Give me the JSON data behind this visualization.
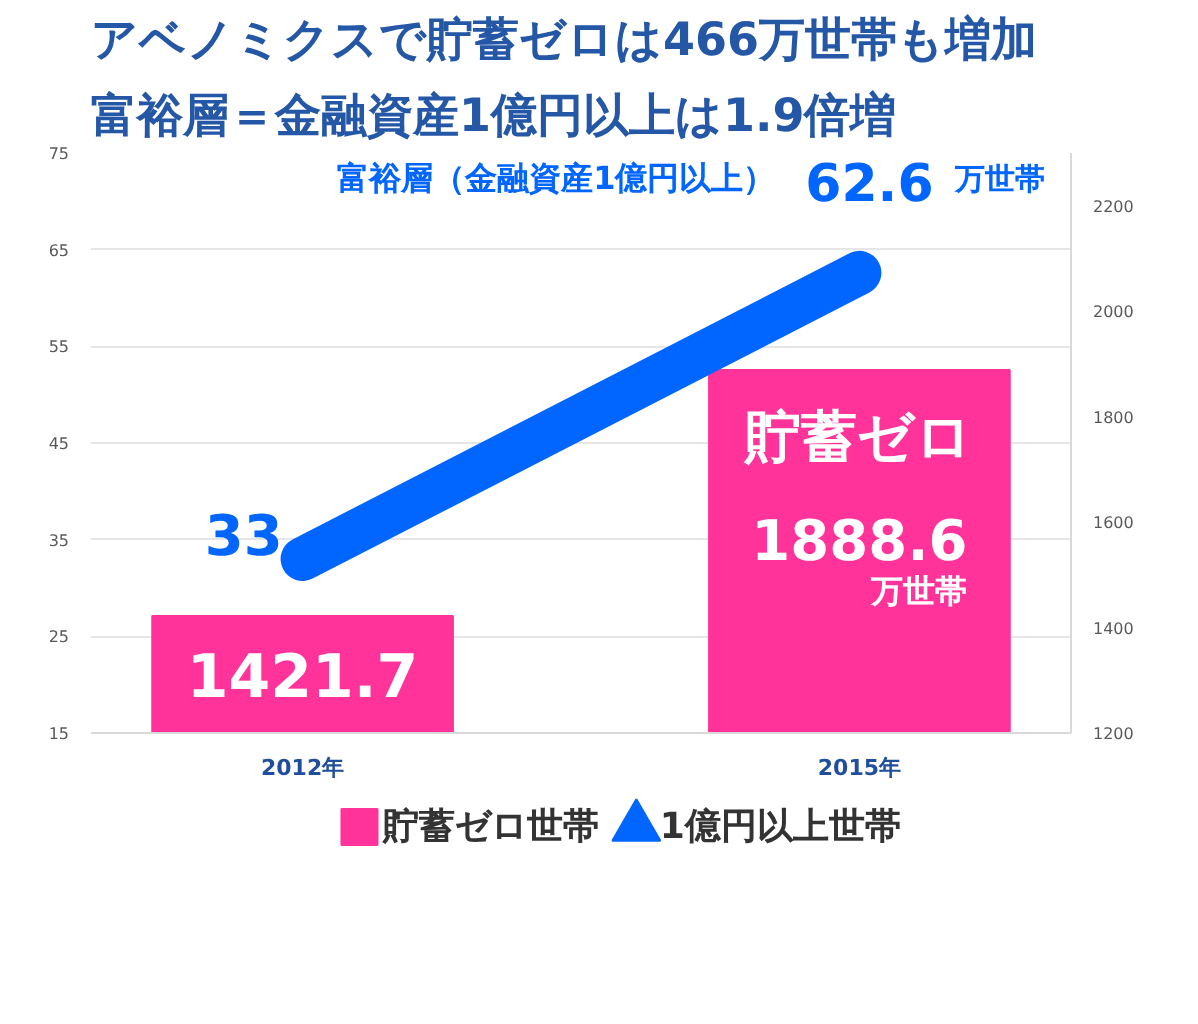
{
  "chart_data": {
    "type": "bar",
    "title": "アベノミクスで貯蓄ゼロは466万世帯も増加",
    "subtitle": "富裕層＝金融資産1億円以上は1.9倍増",
    "categories": [
      "2012年",
      "2015年"
    ],
    "series": [
      {
        "name": "貯蓄ゼロ世帯",
        "color": "#ff3399",
        "values": [
          1421.7,
          1888.6
        ],
        "axis": "y2",
        "value_labels": [
          "1421.7",
          "1888.6"
        ]
      },
      {
        "name": "1億円以上世帯",
        "type": "line",
        "color": "#0066ff",
        "values": [
          33,
          62.6
        ],
        "value_labels": [
          "33",
          "62.6"
        ]
      }
    ],
    "ylim": [
      15,
      75
    ],
    "yticks": [
      15,
      25,
      35,
      45,
      55,
      65,
      75
    ],
    "y2lim": [
      1200,
      2300
    ],
    "y2ticks": [
      1200,
      1400,
      1600,
      1800,
      2000,
      2200
    ],
    "annotations": [
      "富裕層（金融資産1億円以上）",
      "万世帯",
      "貯蓄ゼロ",
      "万世帯"
    ],
    "grid": "y",
    "legend": "bottom"
  }
}
